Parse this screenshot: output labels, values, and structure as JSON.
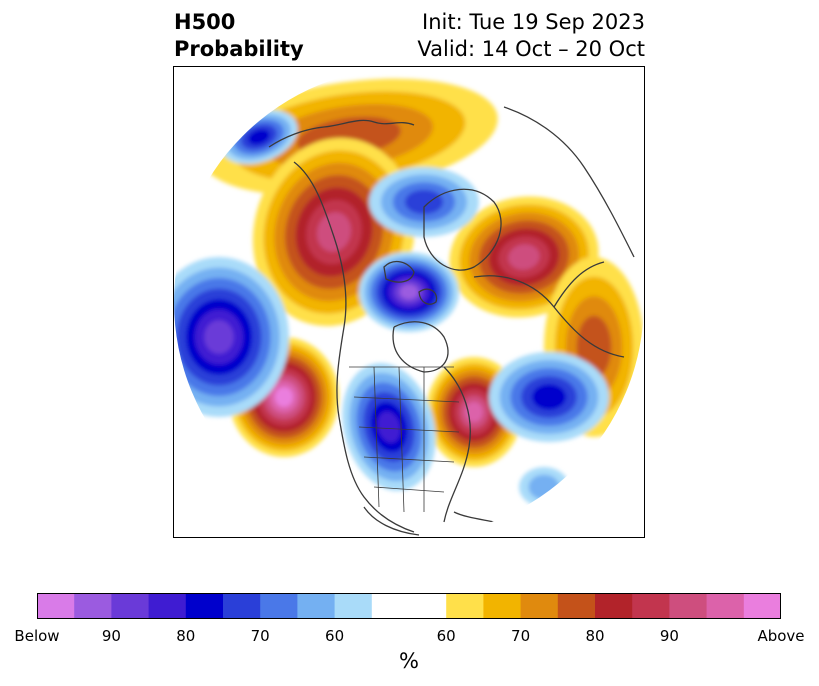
{
  "title": {
    "line1": "H500",
    "line2": "Probability"
  },
  "dates": {
    "init": "Init: Tue 19 Sep 2023",
    "valid": "Valid: 14 Oct – 20 Oct"
  },
  "colorbar": {
    "unit": "%",
    "tick_labels": [
      "Below",
      "90",
      "80",
      "70",
      "60",
      "60",
      "70",
      "80",
      "90",
      "Above"
    ],
    "below_colors": [
      "#d97be8",
      "#9b5be0",
      "#6a3ad8",
      "#3f1cd2",
      "#0000cc",
      "#2a3fd8",
      "#4a78e8",
      "#74b0f2",
      "#a9dbf9"
    ],
    "neutral_color": "#ffffff",
    "above_colors": [
      "#ffe04a",
      "#f2b400",
      "#e08a0e",
      "#c4521a",
      "#b2232a",
      "#c2354e",
      "#ce4e7e",
      "#dc62aa",
      "#ea7ede"
    ]
  }
}
